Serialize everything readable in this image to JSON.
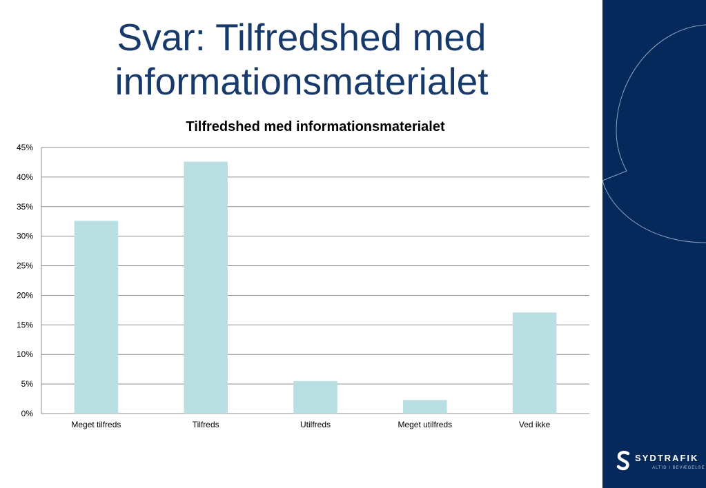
{
  "slide": {
    "title_line1": "Svar: Tilfredshed med",
    "title_line2": "informationsmaterialet"
  },
  "chart_data": {
    "type": "bar",
    "title": "Tilfredshed med informationsmaterialet",
    "categories": [
      "Meget tilfreds",
      "Tilfreds",
      "Utilfreds",
      "Meget utilfreds",
      "Ved ikke"
    ],
    "values": [
      32.6,
      42.6,
      5.5,
      2.3,
      17.1
    ],
    "unit": "%",
    "ylim": [
      0,
      45
    ],
    "yticks": [
      0,
      5,
      10,
      15,
      20,
      25,
      30,
      35,
      40,
      45
    ],
    "ytick_labels": [
      "0%",
      "5%",
      "10%",
      "15%",
      "20%",
      "25%",
      "30%",
      "35%",
      "40%",
      "45%"
    ],
    "grid": true,
    "legend": "none",
    "bar_color": "#b9dfe3",
    "grid_color": "#8c8c8c"
  },
  "brand": {
    "name": "SYDTRAFIK",
    "tagline": "ALTID I BEVÆGELSE",
    "panel_color": "#05295a",
    "title_color": "#173a6b"
  }
}
